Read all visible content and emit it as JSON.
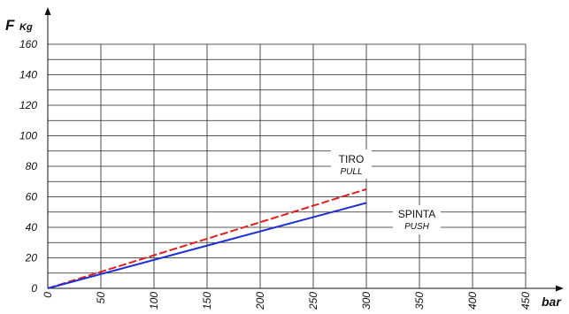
{
  "chart_data": {
    "type": "line",
    "xlabel": "bar",
    "ylabel_main": "F",
    "ylabel_unit": "Kg",
    "xlim": [
      0,
      450
    ],
    "ylim": [
      0,
      160
    ],
    "x_ticks": [
      "0",
      "50",
      "100",
      "150",
      "200",
      "250",
      "300",
      "350",
      "400",
      "450"
    ],
    "y_ticks": [
      "0",
      "20",
      "40",
      "60",
      "80",
      "100",
      "120",
      "140",
      "160"
    ],
    "x_grid_step": 50,
    "y_grid_step": 10,
    "grid": true,
    "series": [
      {
        "name": "TIRO",
        "subname": "PULL",
        "color": "#e02020",
        "dash": true,
        "x": [
          0,
          300
        ],
        "y": [
          0,
          65
        ]
      },
      {
        "name": "SPINTA",
        "subname": "PUSH",
        "color": "#1f2fd4",
        "dash": false,
        "x": [
          0,
          300
        ],
        "y": [
          0,
          56
        ]
      }
    ]
  }
}
